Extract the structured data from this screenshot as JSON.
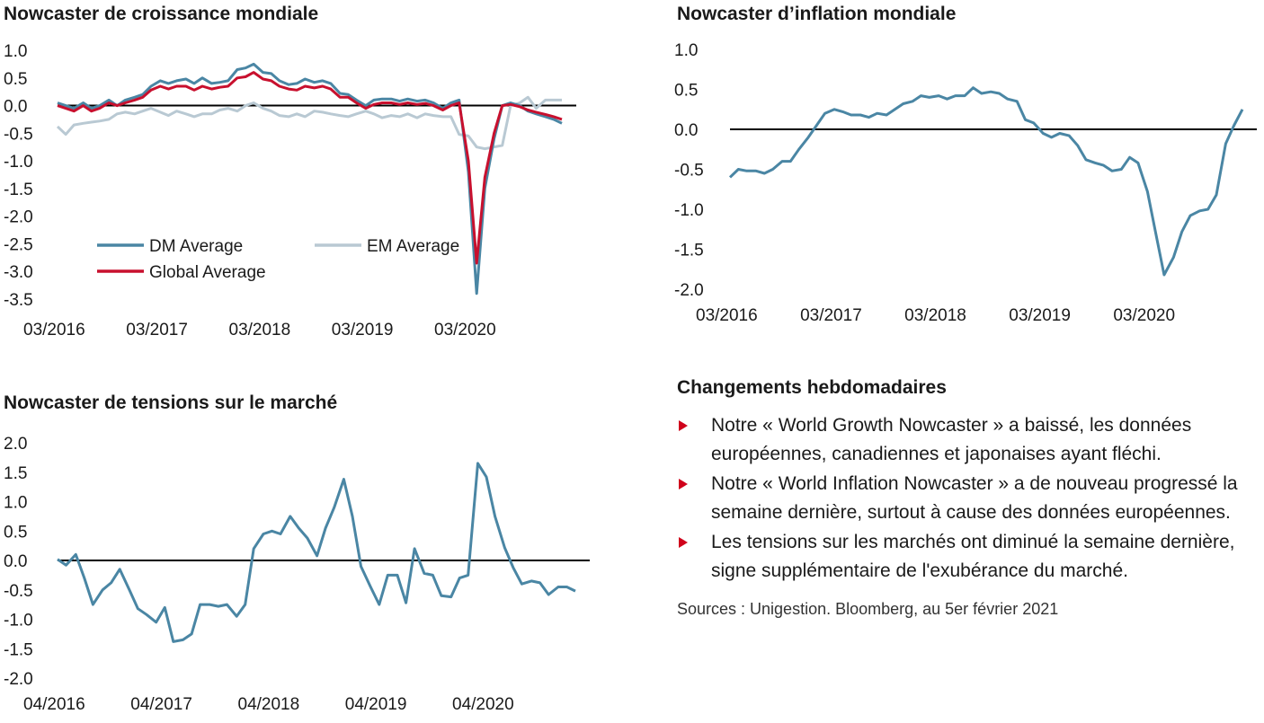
{
  "chart_data": [
    {
      "id": "growth",
      "type": "line",
      "title": "Nowcaster de croissance mondiale",
      "ylim": [
        -3.5,
        1.0
      ],
      "yticks": [
        "1.0",
        "0.5",
        "0.0",
        "-0.5",
        "-1.0",
        "-1.5",
        "-2.0",
        "-2.5",
        "-3.0",
        "-3.5"
      ],
      "xticks": [
        "03/2016",
        "03/2017",
        "03/2018",
        "03/2019",
        "03/2020"
      ],
      "xrange": [
        2016.17,
        2021.08
      ],
      "zero_line": true,
      "legend": [
        "DM Average",
        "EM Average",
        "Global Average"
      ],
      "series": [
        {
          "name": "DM Average",
          "color": "#4a86a4",
          "x": [
            2016.17,
            2016.25,
            2016.33,
            2016.42,
            2016.5,
            2016.58,
            2016.67,
            2016.75,
            2016.83,
            2016.92,
            2017.0,
            2017.08,
            2017.17,
            2017.25,
            2017.33,
            2017.42,
            2017.5,
            2017.58,
            2017.67,
            2017.75,
            2017.83,
            2017.92,
            2018.0,
            2018.08,
            2018.17,
            2018.25,
            2018.33,
            2018.42,
            2018.5,
            2018.58,
            2018.67,
            2018.75,
            2018.83,
            2018.92,
            2019.0,
            2019.08,
            2019.17,
            2019.25,
            2019.33,
            2019.42,
            2019.5,
            2019.58,
            2019.67,
            2019.75,
            2019.83,
            2019.92,
            2020.0,
            2020.08,
            2020.17,
            2020.25,
            2020.33,
            2020.42,
            2020.5,
            2020.58,
            2020.67,
            2020.75,
            2020.83,
            2020.92,
            2021.0,
            2021.08
          ],
          "values": [
            0.05,
            0.0,
            -0.05,
            0.05,
            -0.05,
            0.0,
            0.1,
            0.0,
            0.1,
            0.15,
            0.2,
            0.35,
            0.45,
            0.4,
            0.45,
            0.48,
            0.4,
            0.5,
            0.4,
            0.42,
            0.45,
            0.65,
            0.68,
            0.75,
            0.6,
            0.58,
            0.45,
            0.38,
            0.4,
            0.48,
            0.42,
            0.45,
            0.4,
            0.22,
            0.2,
            0.1,
            0.0,
            0.1,
            0.12,
            0.12,
            0.08,
            0.12,
            0.08,
            0.1,
            0.05,
            -0.05,
            0.05,
            0.1,
            -1.2,
            -3.4,
            -1.5,
            -0.6,
            0.0,
            0.05,
            0.0,
            -0.1,
            -0.15,
            -0.2,
            -0.25,
            -0.32
          ]
        },
        {
          "name": "EM Average",
          "color": "#b9c9d3",
          "x": [
            2016.17,
            2016.25,
            2016.33,
            2016.42,
            2016.5,
            2016.58,
            2016.67,
            2016.75,
            2016.83,
            2016.92,
            2017.0,
            2017.08,
            2017.17,
            2017.25,
            2017.33,
            2017.42,
            2017.5,
            2017.58,
            2017.67,
            2017.75,
            2017.83,
            2017.92,
            2018.0,
            2018.08,
            2018.17,
            2018.25,
            2018.33,
            2018.42,
            2018.5,
            2018.58,
            2018.67,
            2018.75,
            2018.83,
            2018.92,
            2019.0,
            2019.08,
            2019.17,
            2019.25,
            2019.33,
            2019.42,
            2019.5,
            2019.58,
            2019.67,
            2019.75,
            2019.83,
            2019.92,
            2020.0,
            2020.08,
            2020.17,
            2020.25,
            2020.33,
            2020.42,
            2020.5,
            2020.58,
            2020.67,
            2020.75,
            2020.83,
            2020.92,
            2021.0,
            2021.08
          ],
          "values": [
            -0.38,
            -0.52,
            -0.35,
            -0.32,
            -0.3,
            -0.28,
            -0.25,
            -0.15,
            -0.12,
            -0.15,
            -0.1,
            -0.05,
            -0.12,
            -0.18,
            -0.1,
            -0.15,
            -0.2,
            -0.15,
            -0.15,
            -0.08,
            -0.05,
            -0.1,
            0.0,
            0.05,
            -0.05,
            -0.1,
            -0.18,
            -0.2,
            -0.15,
            -0.2,
            -0.1,
            -0.12,
            -0.15,
            -0.18,
            -0.2,
            -0.15,
            -0.1,
            -0.15,
            -0.22,
            -0.18,
            -0.2,
            -0.15,
            -0.22,
            -0.15,
            -0.18,
            -0.2,
            -0.2,
            -0.52,
            -0.55,
            -0.75,
            -0.78,
            -0.75,
            -0.72,
            0.0,
            0.05,
            0.15,
            -0.05,
            0.1,
            0.1,
            0.1
          ]
        },
        {
          "name": "Global Average",
          "color": "#c8102e",
          "x": [
            2016.17,
            2016.25,
            2016.33,
            2016.42,
            2016.5,
            2016.58,
            2016.67,
            2016.75,
            2016.83,
            2016.92,
            2017.0,
            2017.08,
            2017.17,
            2017.25,
            2017.33,
            2017.42,
            2017.5,
            2017.58,
            2017.67,
            2017.75,
            2017.83,
            2017.92,
            2018.0,
            2018.08,
            2018.17,
            2018.25,
            2018.33,
            2018.42,
            2018.5,
            2018.58,
            2018.67,
            2018.75,
            2018.83,
            2018.92,
            2019.0,
            2019.08,
            2019.17,
            2019.25,
            2019.33,
            2019.42,
            2019.5,
            2019.58,
            2019.67,
            2019.75,
            2019.83,
            2019.92,
            2020.0,
            2020.08,
            2020.17,
            2020.25,
            2020.33,
            2020.42,
            2020.5,
            2020.58,
            2020.67,
            2020.75,
            2020.83,
            2020.92,
            2021.0,
            2021.08
          ],
          "values": [
            0.0,
            -0.05,
            -0.1,
            0.0,
            -0.1,
            -0.05,
            0.05,
            0.0,
            0.05,
            0.1,
            0.15,
            0.28,
            0.35,
            0.3,
            0.35,
            0.35,
            0.28,
            0.35,
            0.3,
            0.33,
            0.35,
            0.5,
            0.52,
            0.6,
            0.48,
            0.45,
            0.35,
            0.3,
            0.28,
            0.35,
            0.32,
            0.35,
            0.3,
            0.15,
            0.15,
            0.05,
            -0.05,
            0.02,
            0.05,
            0.05,
            0.02,
            0.05,
            0.02,
            0.04,
            0.0,
            -0.08,
            0.0,
            0.05,
            -1.0,
            -2.85,
            -1.3,
            -0.5,
            0.0,
            0.02,
            -0.02,
            -0.08,
            -0.12,
            -0.16,
            -0.2,
            -0.25
          ]
        }
      ]
    },
    {
      "id": "inflation",
      "type": "line",
      "title": "Nowcaster d’inflation mondiale",
      "ylim": [
        -2.0,
        1.0
      ],
      "yticks": [
        "1.0",
        "0.5",
        "0.0",
        "-0.5",
        "-1.0",
        "-1.5",
        "-2.0"
      ],
      "xticks": [
        "03/2016",
        "03/2017",
        "03/2018",
        "03/2019",
        "03/2020"
      ],
      "xrange": [
        2016.17,
        2021.08
      ],
      "zero_line": true,
      "series": [
        {
          "name": "",
          "color": "#4a86a4",
          "x": [
            2016.17,
            2016.25,
            2016.33,
            2016.42,
            2016.5,
            2016.58,
            2016.67,
            2016.75,
            2016.83,
            2016.92,
            2017.0,
            2017.08,
            2017.17,
            2017.25,
            2017.33,
            2017.42,
            2017.5,
            2017.58,
            2017.67,
            2017.75,
            2017.83,
            2017.92,
            2018.0,
            2018.08,
            2018.17,
            2018.25,
            2018.33,
            2018.42,
            2018.5,
            2018.58,
            2018.67,
            2018.75,
            2018.83,
            2018.92,
            2019.0,
            2019.08,
            2019.17,
            2019.25,
            2019.33,
            2019.42,
            2019.5,
            2019.58,
            2019.67,
            2019.75,
            2019.83,
            2019.92,
            2020.0,
            2020.08,
            2020.17,
            2020.25,
            2020.33,
            2020.42,
            2020.5,
            2020.58,
            2020.67,
            2020.75,
            2020.83,
            2020.92,
            2021.0,
            2021.08
          ],
          "values": [
            -0.6,
            -0.5,
            -0.52,
            -0.52,
            -0.55,
            -0.5,
            -0.4,
            -0.4,
            -0.25,
            -0.1,
            0.05,
            0.2,
            0.25,
            0.22,
            0.18,
            0.18,
            0.15,
            0.2,
            0.18,
            0.25,
            0.32,
            0.35,
            0.42,
            0.4,
            0.42,
            0.38,
            0.42,
            0.42,
            0.52,
            0.45,
            0.47,
            0.45,
            0.38,
            0.35,
            0.12,
            0.08,
            -0.05,
            -0.1,
            -0.05,
            -0.08,
            -0.2,
            -0.38,
            -0.42,
            -0.45,
            -0.52,
            -0.5,
            -0.35,
            -0.42,
            -0.78,
            -1.3,
            -1.82,
            -1.6,
            -1.28,
            -1.08,
            -1.02,
            -1.0,
            -0.82,
            -0.18,
            0.05,
            0.25
          ]
        }
      ]
    },
    {
      "id": "stress",
      "type": "line",
      "title": "Nowcaster de tensions sur le marché",
      "ylim": [
        -2.0,
        2.0
      ],
      "yticks": [
        "2.0",
        "1.5",
        "1.0",
        "0.5",
        "0.0",
        "-0.5",
        "-1.0",
        "-1.5",
        "-2.0"
      ],
      "xticks": [
        "04/2016",
        "04/2017",
        "04/2018",
        "04/2019",
        "04/2020"
      ],
      "xrange": [
        2016.25,
        2021.08
      ],
      "zero_line": true,
      "series": [
        {
          "name": "",
          "color": "#4a86a4",
          "x": [
            2016.25,
            2016.33,
            2016.42,
            2016.5,
            2016.58,
            2016.67,
            2016.75,
            2016.83,
            2016.92,
            2017.0,
            2017.08,
            2017.17,
            2017.25,
            2017.33,
            2017.42,
            2017.5,
            2017.58,
            2017.67,
            2017.75,
            2017.83,
            2017.92,
            2018.0,
            2018.08,
            2018.17,
            2018.25,
            2018.33,
            2018.42,
            2018.5,
            2018.58,
            2018.67,
            2018.75,
            2018.83,
            2018.92,
            2019.0,
            2019.08,
            2019.17,
            2019.25,
            2019.33,
            2019.42,
            2019.5,
            2019.58,
            2019.67,
            2019.75,
            2019.83,
            2019.92,
            2020.0,
            2020.08,
            2020.17,
            2020.25,
            2020.33,
            2020.42,
            2020.5,
            2020.58,
            2020.67,
            2020.75,
            2020.83,
            2020.92,
            2021.0,
            2021.08
          ],
          "values": [
            0.02,
            -0.08,
            0.1,
            -0.3,
            -0.75,
            -0.5,
            -0.38,
            -0.15,
            -0.5,
            -0.82,
            -0.92,
            -1.05,
            -0.8,
            -1.38,
            -1.35,
            -1.25,
            -0.75,
            -0.75,
            -0.78,
            -0.75,
            -0.95,
            -0.75,
            0.2,
            0.45,
            0.5,
            0.45,
            0.75,
            0.55,
            0.38,
            0.08,
            0.55,
            0.9,
            1.38,
            0.75,
            -0.1,
            -0.45,
            -0.75,
            -0.25,
            -0.25,
            -0.72,
            0.2,
            -0.22,
            -0.25,
            -0.6,
            -0.62,
            -0.3,
            -0.25,
            1.65,
            1.42,
            0.75,
            0.22,
            -0.12,
            -0.4,
            -0.35,
            -0.38,
            -0.58,
            -0.45,
            -0.45,
            -0.52
          ]
        }
      ]
    }
  ],
  "text_panel": {
    "heading": "Changements hebdomadaires",
    "bullets": [
      "Notre « World Growth Nowcaster » a baissé, les données européennes, canadiennes et japonaises ayant fléchi.",
      "Notre « World Inflation Nowcaster » a de nouveau progressé la semaine dernière, surtout à cause des données européennes.",
      "Les tensions sur les marchés ont diminué la semaine dernière, signe supplémentaire de l'exubérance du marché."
    ],
    "bullet_color": "#d0021b",
    "source": "Sources : Unigestion. Bloomberg, au 5er février 2021"
  }
}
